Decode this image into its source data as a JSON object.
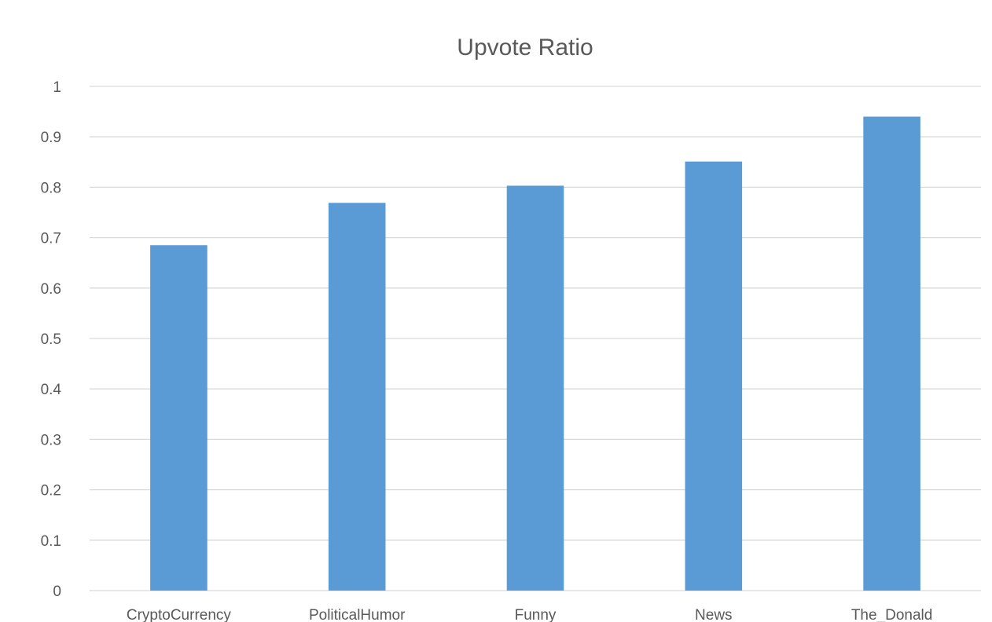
{
  "chart_data": {
    "type": "bar",
    "title": "Upvote Ratio",
    "xlabel": "",
    "ylabel": "",
    "categories": [
      "CryptoCurrency",
      "PoliticalHumor",
      "Funny",
      "News",
      "The_Donald"
    ],
    "values": [
      0.685,
      0.769,
      0.803,
      0.851,
      0.94
    ],
    "ylim": [
      0,
      1
    ],
    "yticks": [
      "0",
      "0.1",
      "0.2",
      "0.3",
      "0.4",
      "0.5",
      "0.6",
      "0.7",
      "0.8",
      "0.9",
      "1"
    ],
    "grid": true,
    "legend": "none",
    "colors": {
      "bar": "#5b9bd5",
      "grid": "#d9d9d9",
      "text": "#595959"
    }
  }
}
